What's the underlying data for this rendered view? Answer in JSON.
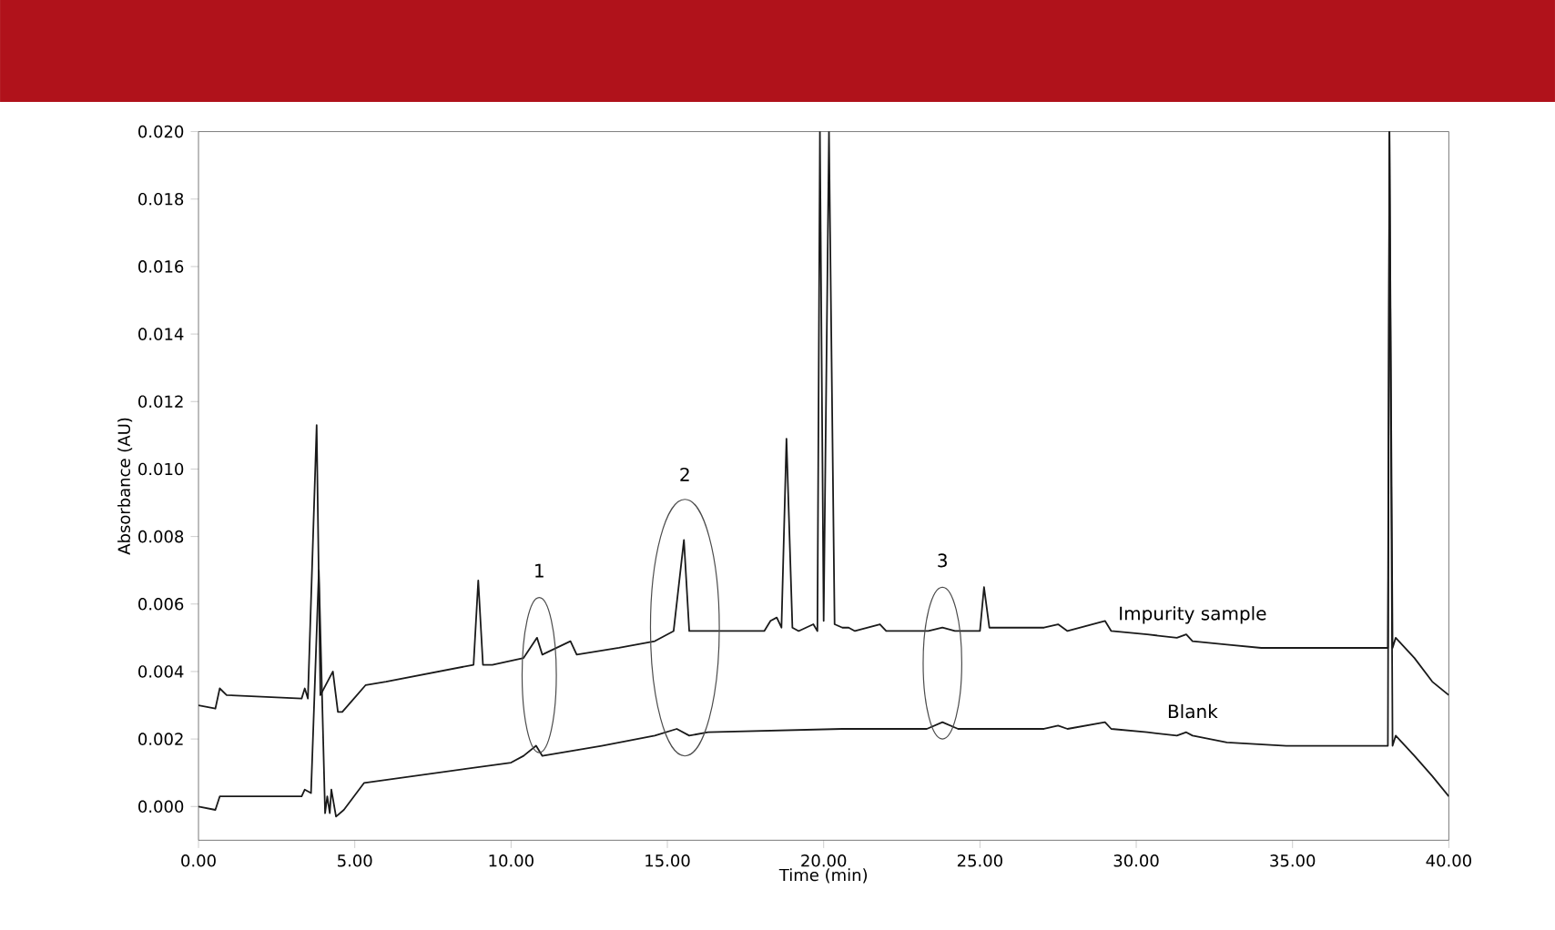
{
  "chart_data": {
    "type": "line",
    "xlabel": "Time (min)",
    "ylabel": "Absorbance (AU)",
    "xlim": [
      0,
      40
    ],
    "ylim": [
      -0.001,
      0.02
    ],
    "xticks": [
      {
        "value": 0,
        "label": "0.00"
      },
      {
        "value": 5,
        "label": "5.00"
      },
      {
        "value": 10,
        "label": "10.00"
      },
      {
        "value": 15,
        "label": "15.00"
      },
      {
        "value": 20,
        "label": "20.00"
      },
      {
        "value": 25,
        "label": "25.00"
      },
      {
        "value": 30,
        "label": "30.00"
      },
      {
        "value": 35,
        "label": "35.00"
      },
      {
        "value": 40,
        "label": "40.00"
      }
    ],
    "yticks": [
      {
        "value": 0,
        "label": "0.000"
      },
      {
        "value": 0.002,
        "label": "0.002"
      },
      {
        "value": 0.004,
        "label": "0.004"
      },
      {
        "value": 0.006,
        "label": "0.006"
      },
      {
        "value": 0.008,
        "label": "0.008"
      },
      {
        "value": 0.01,
        "label": "0.010"
      },
      {
        "value": 0.012,
        "label": "0.012"
      },
      {
        "value": 0.014,
        "label": "0.014"
      },
      {
        "value": 0.016,
        "label": "0.016"
      },
      {
        "value": 0.018,
        "label": "0.018"
      },
      {
        "value": 0.02,
        "label": "0.020"
      }
    ],
    "grid": false,
    "legend": false,
    "marker": "none",
    "line_style": "solid",
    "series": [
      {
        "name": "Impurity sample",
        "color": "#1a1a1a",
        "x": [
          0,
          0.54,
          0.68,
          0.9,
          3.3,
          3.4,
          3.5,
          3.78,
          3.9,
          4.3,
          4.46,
          4.6,
          5.35,
          6.0,
          8.8,
          8.95,
          9.1,
          9.4,
          10.4,
          10.83,
          11.0,
          11.9,
          12.1,
          13.45,
          14.6,
          15.2,
          15.53,
          15.7,
          17.3,
          18.1,
          18.3,
          18.5,
          18.65,
          18.81,
          19.0,
          19.2,
          19.67,
          19.8,
          19.88,
          20.0,
          20.17,
          20.35,
          20.6,
          20.8,
          21.0,
          21.8,
          22.0,
          23.35,
          23.8,
          24.2,
          25.0,
          25.13,
          25.3,
          27.05,
          27.5,
          27.8,
          29.0,
          29.2,
          30.35,
          31.3,
          31.6,
          31.8,
          32.9,
          34.0,
          34.8,
          38.05,
          38.1,
          38.2,
          38.3,
          38.9,
          39.47,
          40.0
        ],
        "values": [
          0.003,
          0.0029,
          0.0035,
          0.0033,
          0.0032,
          0.0035,
          0.0032,
          0.0113,
          0.0033,
          0.004,
          0.0028,
          0.0028,
          0.0036,
          0.0037,
          0.0042,
          0.0067,
          0.0042,
          0.0042,
          0.0044,
          0.005,
          0.0045,
          0.0049,
          0.0045,
          0.0047,
          0.0049,
          0.0052,
          0.0079,
          0.0052,
          0.0052,
          0.0052,
          0.0055,
          0.0056,
          0.0053,
          0.0109,
          0.0053,
          0.0052,
          0.0054,
          0.0052,
          0.02,
          0.0055,
          0.02,
          0.0054,
          0.0053,
          0.0053,
          0.0052,
          0.0054,
          0.0052,
          0.0052,
          0.0053,
          0.0052,
          0.0052,
          0.0065,
          0.0053,
          0.0053,
          0.0054,
          0.0052,
          0.0055,
          0.0052,
          0.0051,
          0.005,
          0.0051,
          0.0049,
          0.0048,
          0.0047,
          0.0047,
          0.0047,
          0.02,
          0.0047,
          0.005,
          0.0044,
          0.0037,
          0.0033
        ]
      },
      {
        "name": "Blank",
        "color": "#1a1a1a",
        "x": [
          0,
          0.54,
          0.68,
          3.3,
          3.4,
          3.6,
          3.85,
          4.05,
          4.12,
          4.2,
          4.25,
          4.4,
          4.65,
          5.3,
          10.0,
          10.4,
          10.8,
          11.0,
          12.9,
          14.6,
          15.3,
          15.7,
          16.3,
          20.6,
          23.3,
          23.8,
          24.3,
          27.05,
          27.5,
          27.8,
          29.0,
          29.2,
          30.35,
          31.3,
          31.6,
          31.8,
          32.9,
          34.8,
          38.05,
          38.1,
          38.2,
          38.3,
          38.9,
          39.47,
          40.0
        ],
        "values": [
          0.0,
          -0.0001,
          0.0003,
          0.0003,
          0.0005,
          0.0004,
          0.007,
          -0.0002,
          0.0003,
          -0.0002,
          0.0005,
          -0.0003,
          -0.0001,
          0.0007,
          0.0013,
          0.0015,
          0.0018,
          0.0015,
          0.0018,
          0.0021,
          0.0023,
          0.0021,
          0.0022,
          0.0023,
          0.0023,
          0.0025,
          0.0023,
          0.0023,
          0.0024,
          0.0023,
          0.0025,
          0.0023,
          0.0022,
          0.0021,
          0.0022,
          0.0021,
          0.0019,
          0.0018,
          0.0018,
          0.02,
          0.0018,
          0.0021,
          0.0015,
          0.0009,
          0.0003
        ]
      }
    ],
    "annotations": [
      "1",
      "2",
      "3"
    ]
  }
}
